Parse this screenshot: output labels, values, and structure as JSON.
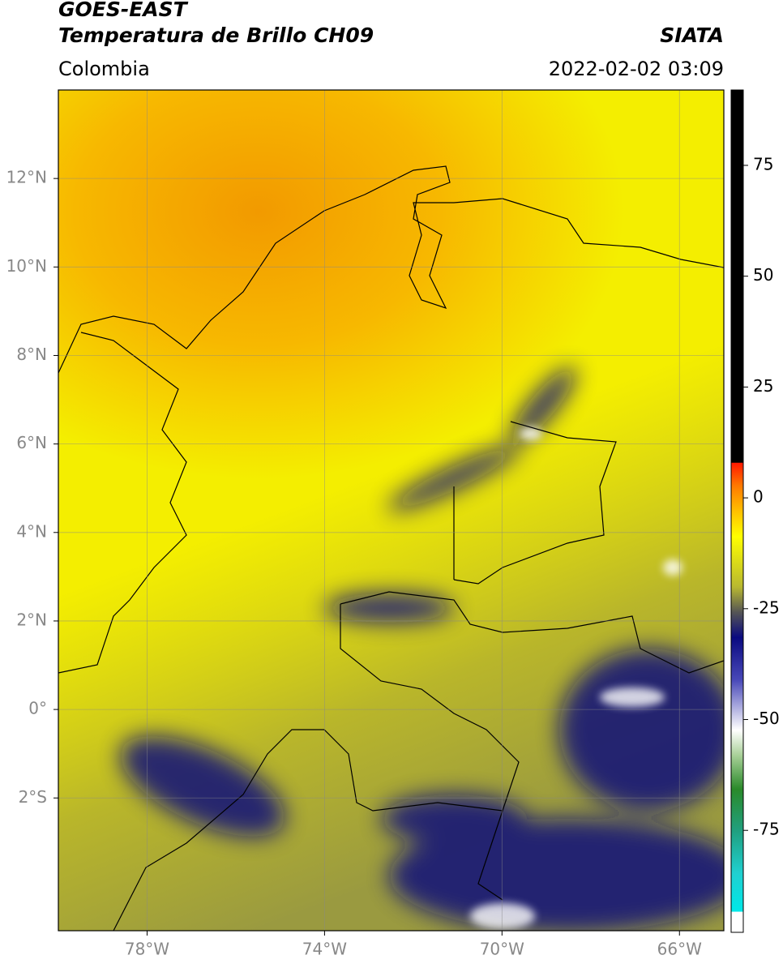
{
  "header": {
    "source": "GOES-EAST",
    "product": "Temperatura de Brillo CH09",
    "agency": "SIATA",
    "region": "Colombia",
    "datetime": "2022-02-02 03:09"
  },
  "map": {
    "xlim": [
      -80,
      -65
    ],
    "ylim": [
      -5,
      14
    ],
    "xticks": [
      {
        "value": -78,
        "label": "78°W"
      },
      {
        "value": -74,
        "label": "74°W"
      },
      {
        "value": -70,
        "label": "70°W"
      },
      {
        "value": -66,
        "label": "66°W"
      }
    ],
    "yticks": [
      {
        "value": 12,
        "label": "12°N"
      },
      {
        "value": 10,
        "label": "10°N"
      },
      {
        "value": 8,
        "label": "8°N"
      },
      {
        "value": 6,
        "label": "6°N"
      },
      {
        "value": 4,
        "label": "4°N"
      },
      {
        "value": 2,
        "label": "2°N"
      },
      {
        "value": 0,
        "label": "0°"
      },
      {
        "value": -2,
        "label": "2°S"
      }
    ],
    "grid": true
  },
  "colorbar": {
    "clim": [
      -98,
      92
    ],
    "ticks": [
      75,
      50,
      25,
      0,
      -25,
      -50,
      -75
    ]
  }
}
